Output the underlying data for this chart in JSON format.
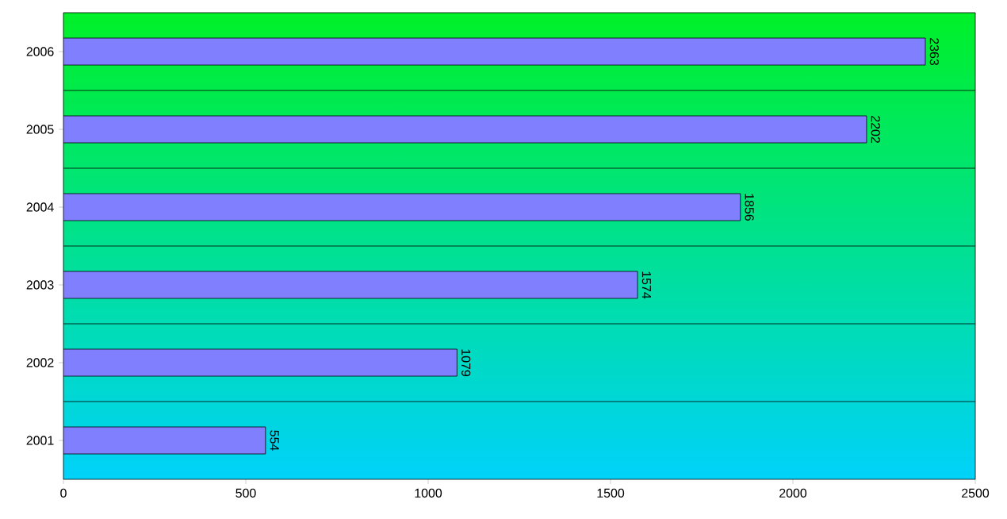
{
  "chart_data": {
    "type": "bar",
    "orientation": "horizontal",
    "categories": [
      "2006",
      "2005",
      "2004",
      "2003",
      "2002",
      "2001"
    ],
    "values": [
      2363,
      2202,
      1856,
      1574,
      1079,
      554
    ],
    "color": "#8080ff",
    "xlim": [
      0,
      2500
    ],
    "xticks": [
      0,
      500,
      1000,
      1500,
      2000,
      2500
    ],
    "grid": "y",
    "data_labels": true
  }
}
